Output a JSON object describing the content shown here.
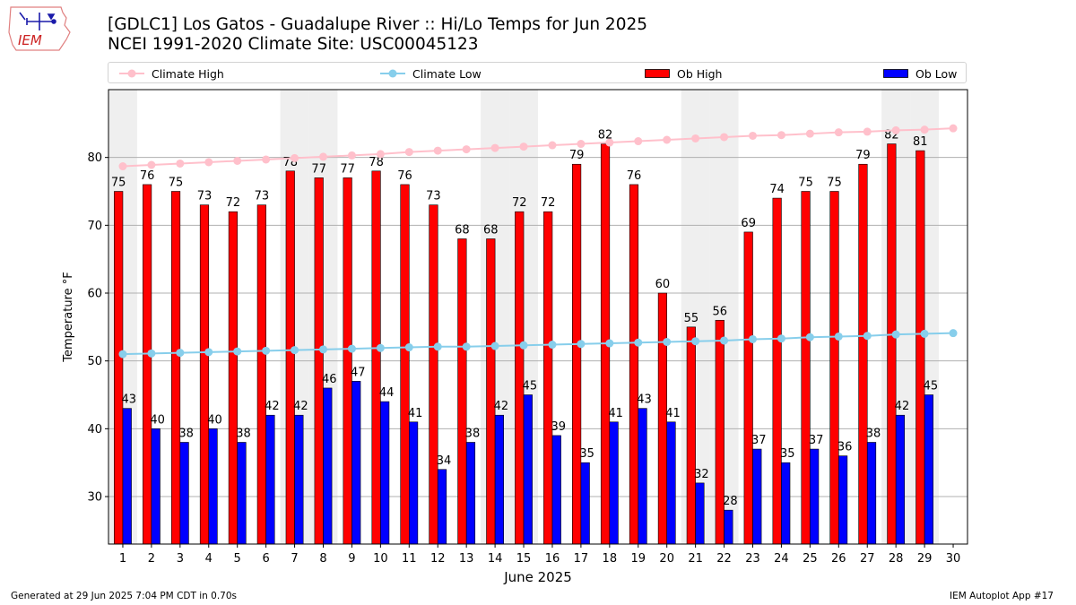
{
  "header": {
    "logo_text": "IEM",
    "title_line1": "[GDLC1] Los Gatos - Guadalupe River :: Hi/Lo Temps for Jun 2025",
    "title_line2": "NCEI 1991-2020 Climate Site: USC00045123"
  },
  "legend": {
    "items": [
      {
        "label": "Climate High",
        "color": "#ffc0cb",
        "kind": "line"
      },
      {
        "label": "Climate Low",
        "color": "#87ceeb",
        "kind": "line"
      },
      {
        "label": "Ob High",
        "color": "#ff0000",
        "kind": "bar"
      },
      {
        "label": "Ob Low",
        "color": "#0000ff",
        "kind": "bar"
      }
    ]
  },
  "footer": {
    "generated": "Generated at 29 Jun 2025 7:04 PM CDT in 0.70s",
    "app": "IEM Autoplot App #17"
  },
  "chart_data": {
    "type": "bar",
    "xlabel": "June 2025",
    "ylabel": "Temperature °F",
    "ylim": [
      23,
      90
    ],
    "yticks": [
      30,
      40,
      50,
      60,
      70,
      80
    ],
    "grid": "y",
    "legend_position": "top",
    "x": [
      1,
      2,
      3,
      4,
      5,
      6,
      7,
      8,
      9,
      10,
      11,
      12,
      13,
      14,
      15,
      16,
      17,
      18,
      19,
      20,
      21,
      22,
      23,
      24,
      25,
      26,
      27,
      28,
      29,
      30
    ],
    "weekend_days": [
      1,
      7,
      8,
      14,
      15,
      21,
      22,
      28,
      29
    ],
    "series": [
      {
        "name": "Ob High",
        "color": "#ff0000",
        "values": [
          75,
          76,
          75,
          73,
          72,
          73,
          78,
          77,
          77,
          78,
          76,
          73,
          68,
          68,
          72,
          72,
          79,
          82,
          76,
          60,
          55,
          56,
          69,
          74,
          75,
          75,
          79,
          82,
          81,
          null
        ]
      },
      {
        "name": "Ob Low",
        "color": "#0000ff",
        "values": [
          43,
          40,
          38,
          40,
          38,
          42,
          42,
          46,
          47,
          44,
          41,
          34,
          38,
          42,
          45,
          39,
          35,
          41,
          43,
          41,
          32,
          28,
          37,
          35,
          37,
          36,
          38,
          42,
          45,
          null
        ]
      },
      {
        "name": "Climate High",
        "color": "#ffc0cb",
        "values": [
          78.7,
          78.9,
          79.1,
          79.3,
          79.5,
          79.7,
          79.9,
          80.1,
          80.3,
          80.5,
          80.8,
          81.0,
          81.2,
          81.4,
          81.6,
          81.8,
          82.0,
          82.2,
          82.4,
          82.6,
          82.8,
          83.0,
          83.2,
          83.3,
          83.5,
          83.7,
          83.8,
          84.0,
          84.1,
          84.3
        ]
      },
      {
        "name": "Climate Low",
        "color": "#87ceeb",
        "values": [
          51.0,
          51.1,
          51.2,
          51.3,
          51.4,
          51.5,
          51.6,
          51.7,
          51.8,
          51.9,
          52.0,
          52.1,
          52.1,
          52.2,
          52.3,
          52.4,
          52.5,
          52.6,
          52.7,
          52.8,
          52.9,
          53.0,
          53.2,
          53.3,
          53.5,
          53.6,
          53.7,
          53.9,
          54.0,
          54.1
        ]
      }
    ]
  }
}
